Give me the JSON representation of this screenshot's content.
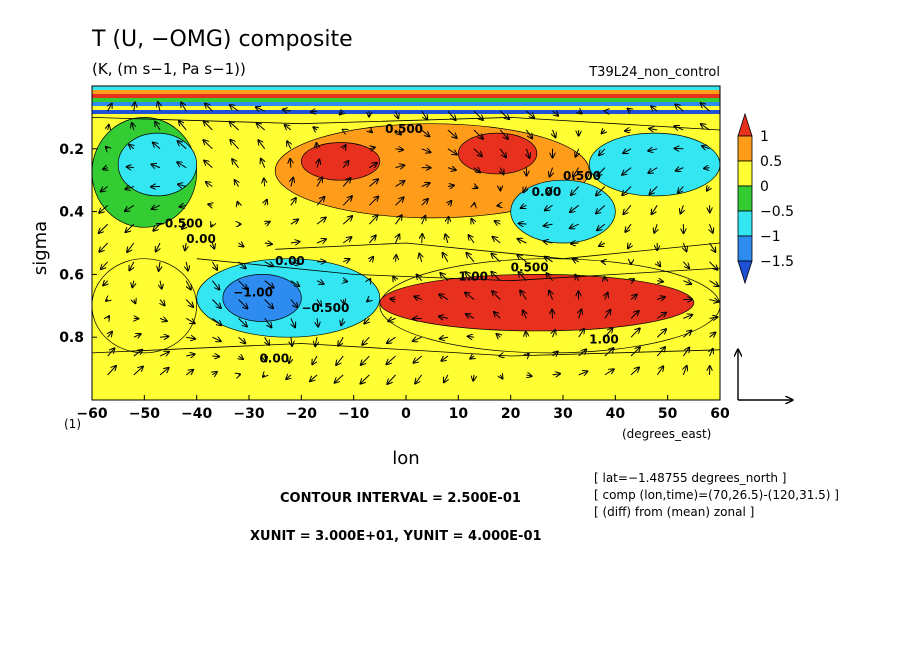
{
  "chart_data": {
    "type": "heatmap",
    "title": "T (U, −OMG) composite",
    "subtitle": "(K, (m s−1, Pa s−1))",
    "run_label": "T39L24_non_control",
    "xlabel": "lon",
    "x_unit_label": "(degrees_east)",
    "ylabel": "sigma",
    "y_bottom_label": "(1)",
    "xlim": [
      -60,
      60
    ],
    "ylim": [
      1.0,
      0.0
    ],
    "x_ticks": [
      -60,
      -50,
      -40,
      -30,
      -20,
      -10,
      0,
      10,
      20,
      30,
      40,
      50,
      60
    ],
    "x_tick_labels": [
      "−60",
      "−50",
      "−40",
      "−30",
      "−20",
      "−10",
      "0",
      "10",
      "20",
      "30",
      "40",
      "50",
      "60"
    ],
    "y_ticks": [
      0.2,
      0.4,
      0.6,
      0.8
    ],
    "y_tick_labels": [
      "0.2",
      "0.4",
      "0.6",
      "0.8"
    ],
    "contour_interval": "CONTOUR INTERVAL = 2.500E-01",
    "vector_units": "XUNIT = 3.000E+01, YUNIT = 4.000E-01",
    "info_lines": [
      "[ lat=−1.48755 degrees_north ]",
      "[ comp (lon,time)=(70,26.5)-(120,31.5) ]",
      "[ (diff) from (mean) zonal ]"
    ],
    "colorbar": {
      "levels": [
        "1",
        "0.5",
        "0",
        "−0.5",
        "−1",
        "−1.5"
      ],
      "colors": [
        "#e8301e",
        "#ff9c1a",
        "#ffff33",
        "#33cc33",
        "#33e6f2",
        "#2e8bf0",
        "#1e50d8"
      ]
    },
    "contour_labels": [
      "0.500",
      "0.00",
      "1.00",
      "−0.500",
      "0.500",
      "0.00",
      "−1.00",
      "−0.500",
      "1.00",
      "0.00",
      "0.500",
      "0.00"
    ],
    "regions": [
      {
        "lon": [
          -60,
          60
        ],
        "sigma": [
          0.85,
          1.0
        ],
        "value": 0.1
      },
      {
        "lon": [
          -60,
          -40
        ],
        "sigma": [
          0.55,
          0.85
        ],
        "value": 0.2
      },
      {
        "lon": [
          -40,
          -5
        ],
        "sigma": [
          0.55,
          0.8
        ],
        "value": -0.6
      },
      {
        "lon": [
          -35,
          -20
        ],
        "sigma": [
          0.6,
          0.75
        ],
        "value": -1.2
      },
      {
        "lon": [
          -60,
          -40
        ],
        "sigma": [
          0.1,
          0.45
        ],
        "value": -0.4
      },
      {
        "lon": [
          -55,
          -40
        ],
        "sigma": [
          0.15,
          0.35
        ],
        "value": -0.9
      },
      {
        "lon": [
          -5,
          60
        ],
        "sigma": [
          0.55,
          0.85
        ],
        "value": 0.5
      },
      {
        "lon": [
          -5,
          55
        ],
        "sigma": [
          0.6,
          0.78
        ],
        "value": 1.2
      },
      {
        "lon": [
          -25,
          35
        ],
        "sigma": [
          0.12,
          0.42
        ],
        "value": 0.6
      },
      {
        "lon": [
          -20,
          -5
        ],
        "sigma": [
          0.18,
          0.3
        ],
        "value": 1.1
      },
      {
        "lon": [
          10,
          25
        ],
        "sigma": [
          0.15,
          0.28
        ],
        "value": 1.1
      },
      {
        "lon": [
          20,
          40
        ],
        "sigma": [
          0.3,
          0.5
        ],
        "value": -0.5
      },
      {
        "lon": [
          35,
          60
        ],
        "sigma": [
          0.15,
          0.35
        ],
        "value": -0.6
      }
    ]
  }
}
